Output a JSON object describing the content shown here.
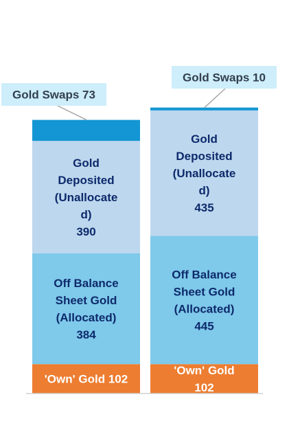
{
  "chart_data": {
    "type": "bar",
    "stacked": true,
    "grid": false,
    "legend": "none",
    "categories": [
      "",
      ""
    ],
    "series": [
      {
        "key": "own",
        "values": [
          102,
          102
        ],
        "color": "#ED7D31",
        "label_color": "#ffffff",
        "labels": [
          [
            "'Own' Gold  102"
          ],
          [
            "'Own' Gold",
            "102"
          ]
        ]
      },
      {
        "key": "off_balance",
        "values": [
          384,
          445
        ],
        "color": "#7FC9EA",
        "label_color": "#0D2A6B",
        "labels": [
          [
            "Off Balance",
            "Sheet Gold",
            "(Allocated)",
            "384"
          ],
          [
            "Off Balance",
            "Sheet Gold",
            "(Allocated)",
            "445"
          ]
        ]
      },
      {
        "key": "deposited",
        "values": [
          390,
          435
        ],
        "color": "#BDD7EE",
        "label_color": "#0D2A6B",
        "labels": [
          [
            "Gold",
            "Deposited",
            "(Unallocate",
            "d)",
            "390"
          ],
          [
            "Gold",
            "Deposited",
            "(Unallocate",
            "d)",
            "435"
          ]
        ]
      },
      {
        "key": "swaps",
        "values": [
          73,
          10
        ],
        "color": "#1396D3",
        "callout_bg": "#CDEEFA",
        "callout_text_color": "#333F50",
        "labels": [
          "Gold Swaps  73",
          "Gold Swaps  10"
        ]
      }
    ]
  }
}
